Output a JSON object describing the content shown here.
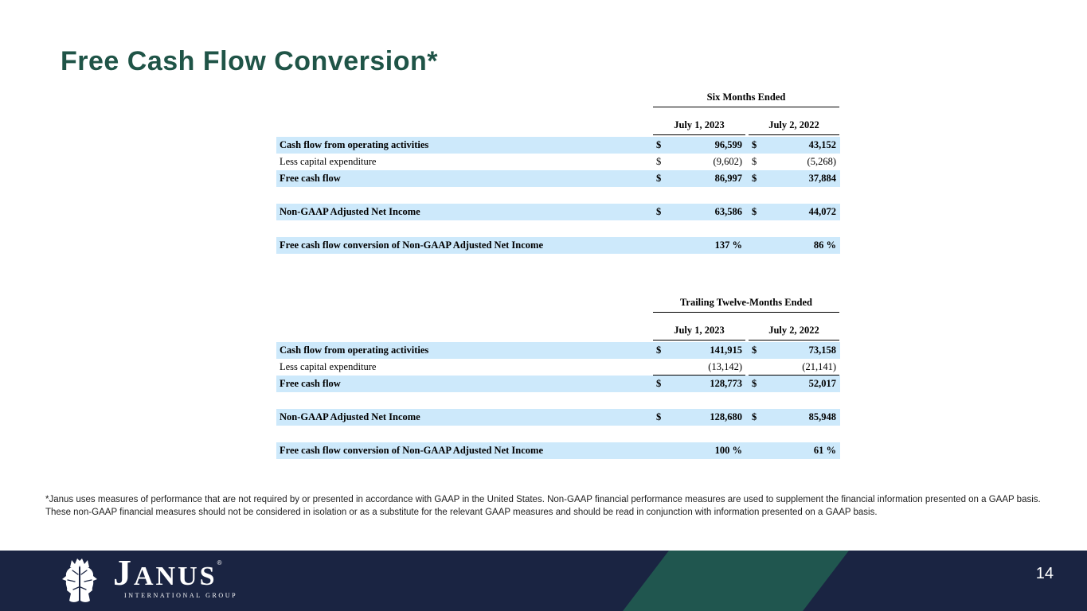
{
  "title": "Free Cash Flow Conversion*",
  "tables": [
    {
      "period": "Six Months Ended",
      "columns": [
        "July 1, 2023",
        "July 2, 2022"
      ],
      "rows": [
        {
          "label": "Cash flow from operating activities",
          "bold": true,
          "fill": true,
          "c1": "$",
          "v1": "96,599",
          "c2": "$",
          "v2": "43,152",
          "underline": false
        },
        {
          "label": "Less capital expenditure",
          "bold": false,
          "fill": false,
          "c1": "$",
          "v1": "(9,602)",
          "c2": "$",
          "v2": "(5,268)",
          "underline": false
        },
        {
          "label": "Free cash flow",
          "bold": true,
          "fill": true,
          "c1": "$",
          "v1": "86,997",
          "c2": "$",
          "v2": "37,884",
          "underline": false
        },
        {
          "spacer": true
        },
        {
          "label": "Non-GAAP Adjusted Net Income",
          "bold": true,
          "fill": true,
          "c1": "$",
          "v1": "63,586",
          "c2": "$",
          "v2": "44,072",
          "underline": false
        },
        {
          "spacer": true
        },
        {
          "label": "Free cash flow conversion of Non-GAAP Adjusted Net Income",
          "bold": true,
          "fill": true,
          "c1": "",
          "v1": "137 %",
          "c2": "",
          "v2": "86 %",
          "underline": false
        }
      ]
    },
    {
      "period": "Trailing Twelve-Months Ended",
      "columns": [
        "July 1, 2023",
        "July 2, 2022"
      ],
      "rows": [
        {
          "label": "Cash flow from operating activities",
          "bold": true,
          "fill": true,
          "c1": "$",
          "v1": "141,915",
          "c2": "$",
          "v2": "73,158",
          "underline": false
        },
        {
          "label": "Less capital expenditure",
          "bold": false,
          "fill": false,
          "c1": "",
          "v1": "(13,142)",
          "c2": "",
          "v2": "(21,141)",
          "underline": true
        },
        {
          "label": "Free cash flow",
          "bold": true,
          "fill": true,
          "c1": "$",
          "v1": "128,773",
          "c2": "$",
          "v2": "52,017",
          "underline": false
        },
        {
          "spacer": true
        },
        {
          "label": "Non-GAAP Adjusted Net Income",
          "bold": true,
          "fill": true,
          "c1": "$",
          "v1": "128,680",
          "c2": "$",
          "v2": "85,948",
          "underline": false
        },
        {
          "spacer": true
        },
        {
          "label": "Free cash flow conversion of Non-GAAP Adjusted Net Income",
          "bold": true,
          "fill": true,
          "c1": "",
          "v1": "100 %",
          "c2": "",
          "v2": "61 %",
          "underline": false
        }
      ]
    }
  ],
  "footnote": "*Janus uses measures of performance that are not required by or presented in accordance with GAAP in the United States. Non-GAAP financial performance measures are used to supplement the financial information presented on a GAAP basis. These non-GAAP financial measures should not be considered in isolation or as a substitute for the relevant GAAP measures and should be read in conjunction with information presented on a GAAP basis.",
  "footer": {
    "logo": {
      "name": "JANUS",
      "subtext": "INTERNATIONAL GROUP",
      "trademark": "®",
      "icon": "janus-two-faces-icon"
    },
    "page_number": "14"
  },
  "colors": {
    "title_green": "#1F5447",
    "accent_green": "#20564F",
    "footer_navy": "#1A2442",
    "row_highlight_blue": "#CDE9FB",
    "table_text": "#000000"
  }
}
